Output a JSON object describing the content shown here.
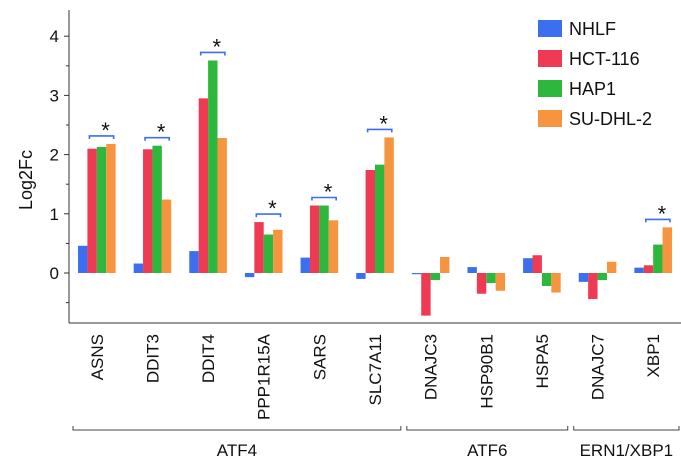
{
  "chart_data": {
    "type": "bar",
    "ylabel": "Log2Fc",
    "ylim": [
      -0.8,
      4.35
    ],
    "yticks": [
      "0",
      "1",
      "2",
      "3",
      "4"
    ],
    "categories": [
      "ASNS",
      "DDIT3",
      "DDIT4",
      "PPP1R15A",
      "SARS",
      "SLC7A11",
      "DNAJC3",
      "HSP90B1",
      "HSPA5",
      "DNAJC7",
      "XBP1"
    ],
    "series": [
      {
        "name": "NHLF",
        "color": "#3b6ff0",
        "values": [
          0.46,
          0.16,
          0.37,
          -0.07,
          0.26,
          -0.1,
          -0.02,
          0.1,
          0.25,
          -0.15,
          0.09
        ]
      },
      {
        "name": "HCT-116",
        "color": "#ee3a52",
        "values": [
          2.1,
          2.09,
          2.95,
          0.86,
          1.14,
          1.74,
          -0.72,
          -0.35,
          0.3,
          -0.44,
          0.13
        ]
      },
      {
        "name": "HAP1",
        "color": "#2db83d",
        "values": [
          2.13,
          2.15,
          3.59,
          0.65,
          1.14,
          1.83,
          -0.12,
          -0.17,
          -0.22,
          -0.12,
          0.48
        ]
      },
      {
        "name": "SU-DHL-2",
        "color": "#f79440",
        "values": [
          2.18,
          1.24,
          2.28,
          0.73,
          0.89,
          2.29,
          0.27,
          -0.3,
          -0.33,
          0.19,
          0.77
        ]
      }
    ],
    "significance": [
      {
        "category": "ASNS",
        "label": "*"
      },
      {
        "category": "DDIT3",
        "label": "*"
      },
      {
        "category": "DDIT4",
        "label": "*"
      },
      {
        "category": "PPP1R15A",
        "label": "*"
      },
      {
        "category": "SARS",
        "label": "*"
      },
      {
        "category": "SLC7A11",
        "label": "*"
      },
      {
        "category": "XBP1",
        "label": "*"
      }
    ],
    "groups": [
      {
        "label": "ATF4",
        "categories": [
          "ASNS",
          "DDIT3",
          "DDIT4",
          "PPP1R15A",
          "SARS",
          "SLC7A11"
        ]
      },
      {
        "label": "ATF6",
        "categories": [
          "DNAJC3",
          "HSP90B1",
          "HSPA5"
        ]
      },
      {
        "label": "ERN1/XBP1",
        "categories": [
          "DNAJC7",
          "XBP1"
        ]
      }
    ],
    "legend_position": "top-right",
    "grid": false
  }
}
